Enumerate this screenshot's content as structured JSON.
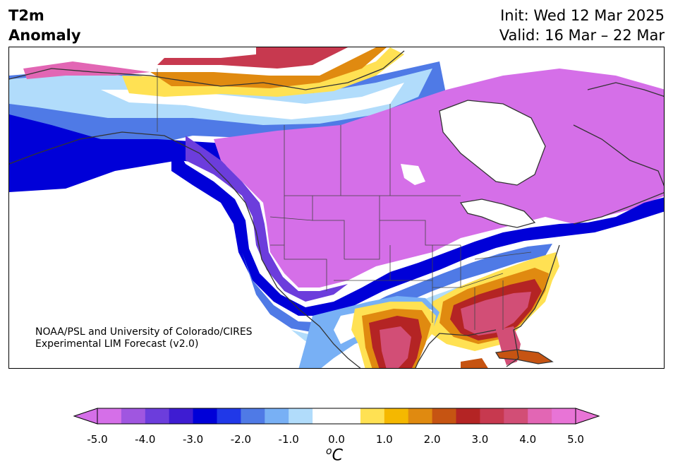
{
  "title": {
    "left_line1": "T2m",
    "left_line2": "Anomaly",
    "right_line1": "Init: Wed 12 Mar 2025",
    "right_line2": "Valid: 16 Mar – 22 Mar"
  },
  "credit": {
    "line1": "NOAA/PSL and University of Colorado/CIRES",
    "line2": "Experimental LIM Forecast (v2.0)"
  },
  "colorbar": {
    "unit_base": "C",
    "unit_sup": "o",
    "ticks": [
      "-5.0",
      "-4.0",
      "-3.0",
      "-2.0",
      "-1.0",
      "0.0",
      "1.0",
      "2.0",
      "3.0",
      "4.0",
      "5.0"
    ],
    "colors": [
      "#d56fe8",
      "#a056e0",
      "#6c3ddc",
      "#3e1cd2",
      "#0000d8",
      "#2038e8",
      "#4f7ae6",
      "#78b0f5",
      "#b1dcfb",
      "#ffffff",
      "#ffffff",
      "#ffe153",
      "#f5b800",
      "#e08a10",
      "#c65412",
      "#b42424",
      "#c7394f",
      "#d24e76",
      "#e266b4",
      "#e874d6"
    ],
    "under_color": "#d56fe8",
    "over_color": "#e874d6"
  },
  "regions": {
    "canada_west": "cold anomaly",
    "central_us": "cold anomaly",
    "southeast_us": "warm anomaly",
    "texas_mexico": "warm anomaly",
    "alaska_north": "warm anomaly"
  }
}
